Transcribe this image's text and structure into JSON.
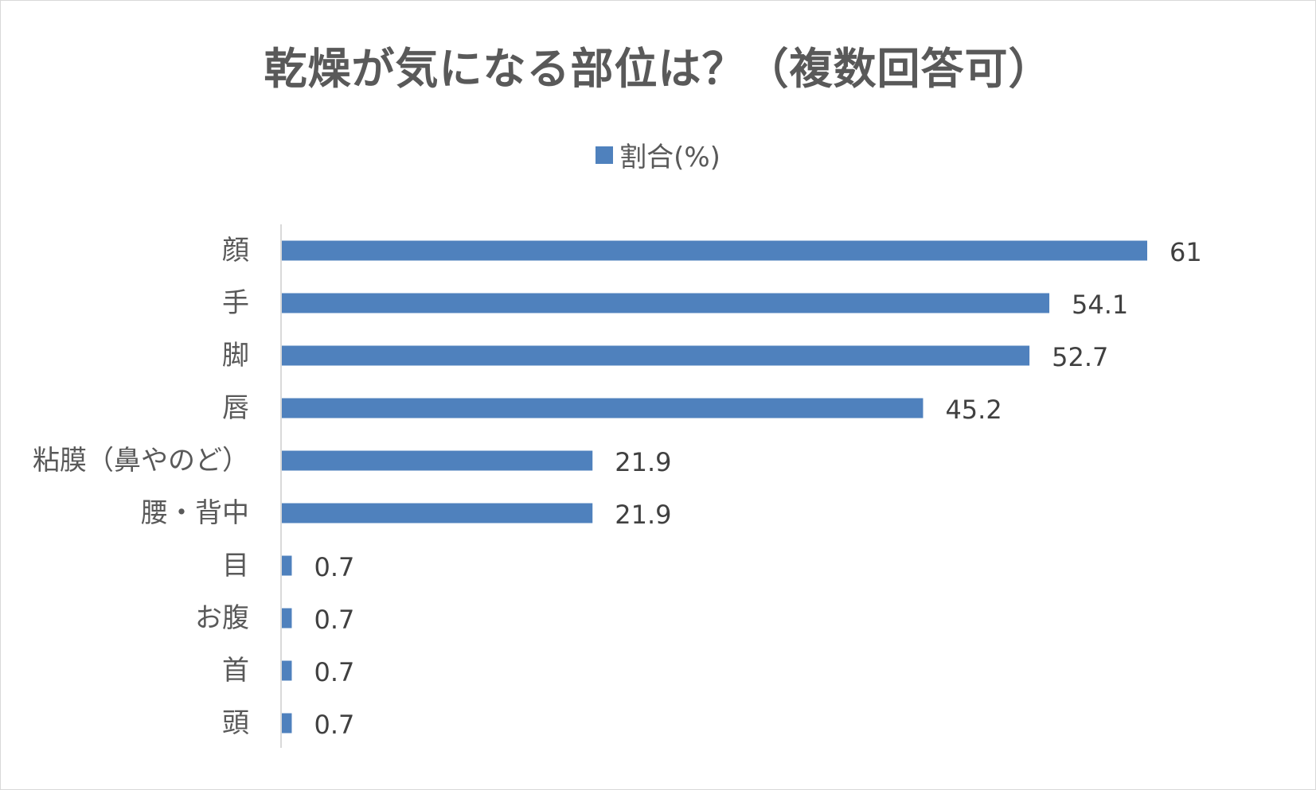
{
  "chart_data": {
    "type": "bar",
    "orientation": "horizontal",
    "title": "乾燥が気になる部位は？（複数回答可）",
    "legend": {
      "position": "top",
      "entries": [
        "割合(%)"
      ]
    },
    "categories": [
      "顔",
      "手",
      "脚",
      "唇",
      "粘膜（鼻やのど）",
      "腰・背中",
      "目",
      "お腹",
      "首",
      "頭"
    ],
    "series": [
      {
        "name": "割合(%)",
        "color": "#4f81bd",
        "values": [
          61,
          54.1,
          52.7,
          45.2,
          21.9,
          21.9,
          0.7,
          0.7,
          0.7,
          0.7
        ]
      }
    ],
    "data_labels": [
      "61",
      "54.1",
      "52.7",
      "45.2",
      "21.9",
      "21.9",
      "0.7",
      "0.7",
      "0.7",
      "0.7"
    ],
    "xlim": [
      0,
      61
    ],
    "grid": false,
    "axis_color": "#d9d9d9",
    "text_color": "#595959"
  }
}
